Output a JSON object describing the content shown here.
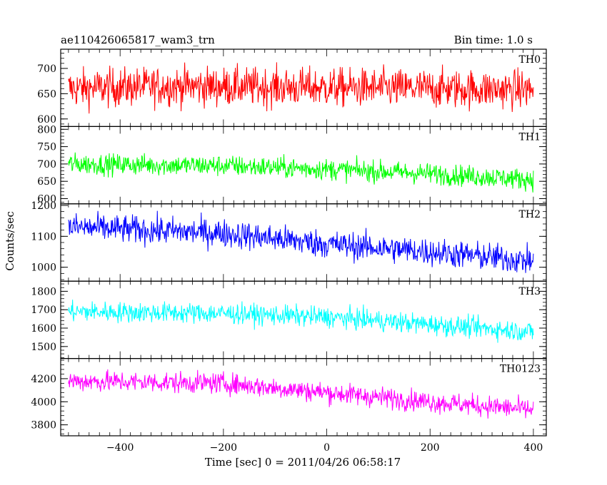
{
  "header": {
    "title_left": "ae110426065817_wam3_trn",
    "title_right": "Bin time: 1.0 s"
  },
  "chart_data": {
    "type": "line",
    "title": "ae110426065817_wam3_trn",
    "subtitle": "Bin time: 1.0 s",
    "xlabel": "Time [sec] 0 = 2011/04/26 06:58:17",
    "ylabel": "Counts/sec",
    "xlim": [
      -515,
      425
    ],
    "xticks": [
      -400,
      -200,
      0,
      200,
      400
    ],
    "xtick_labels": [
      "−400",
      "−200",
      "0",
      "200",
      "400"
    ],
    "x_range_data": [
      -500,
      400
    ],
    "bin_time_s": 1.0,
    "grid": false,
    "panels": [
      {
        "name": "TH0",
        "color": "#ff0000",
        "ylim": [
          585,
          738
        ],
        "yticks": [
          600,
          650,
          700
        ],
        "trend": [
          [
            -500,
            660
          ],
          [
            -300,
            665
          ],
          [
            0,
            662
          ],
          [
            400,
            658
          ]
        ],
        "noise_amplitude": 38
      },
      {
        "name": "TH1",
        "color": "#00ff00",
        "ylim": [
          585,
          808
        ],
        "yticks": [
          600,
          650,
          700,
          750,
          800
        ],
        "trend": [
          [
            -500,
            700
          ],
          [
            -200,
            695
          ],
          [
            0,
            685
          ],
          [
            200,
            672
          ],
          [
            400,
            655
          ]
        ],
        "noise_amplitude": 30
      },
      {
        "name": "TH2",
        "color": "#0000ff",
        "ylim": [
          955,
          1205
        ],
        "yticks": [
          1000,
          1100,
          1200
        ],
        "trend": [
          [
            -500,
            1130
          ],
          [
            -200,
            1110
          ],
          [
            0,
            1075
          ],
          [
            200,
            1050
          ],
          [
            400,
            1020
          ]
        ],
        "noise_amplitude": 45
      },
      {
        "name": "TH3",
        "color": "#00ffff",
        "ylim": [
          1435,
          1855
        ],
        "yticks": [
          1500,
          1600,
          1700,
          1800
        ],
        "trend": [
          [
            -500,
            1690
          ],
          [
            -200,
            1680
          ],
          [
            0,
            1660
          ],
          [
            200,
            1620
          ],
          [
            400,
            1580
          ]
        ],
        "noise_amplitude": 55
      },
      {
        "name": "TH0123",
        "color": "#ff00ff",
        "ylim": [
          3705,
          4375
        ],
        "yticks": [
          3800,
          4000,
          4200
        ],
        "trend": [
          [
            -500,
            4180
          ],
          [
            -200,
            4160
          ],
          [
            0,
            4080
          ],
          [
            200,
            4000
          ],
          [
            400,
            3930
          ]
        ],
        "noise_amplitude": 90
      }
    ]
  }
}
